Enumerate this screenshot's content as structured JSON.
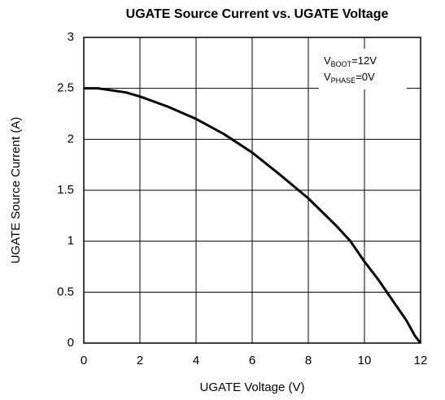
{
  "chart_data": {
    "type": "line",
    "title": "UGATE Source Current vs. UGATE Voltage",
    "x_label": "UGATE Voltage (V)",
    "y_label": "UGATE Source Current (A)",
    "annotations": [
      {
        "text": "V",
        "sub": "BOOT",
        "suffix": "=12V"
      },
      {
        "text": "V",
        "sub": "PHASE",
        "suffix": "=0V"
      }
    ],
    "x": [
      0,
      0.5,
      1,
      1.5,
      2,
      3,
      4,
      5,
      6,
      7,
      8,
      9,
      9.5,
      10,
      10.5,
      11,
      11.5,
      11.8,
      12
    ],
    "series": [
      {
        "name": "UGATE Source Current",
        "color": "#000000",
        "values": [
          2.5,
          2.5,
          2.48,
          2.46,
          2.42,
          2.32,
          2.2,
          2.05,
          1.87,
          1.65,
          1.42,
          1.15,
          1.0,
          0.8,
          0.62,
          0.42,
          0.22,
          0.07,
          0
        ]
      }
    ],
    "xlim": [
      0,
      12
    ],
    "xticks": [
      0,
      2,
      4,
      6,
      8,
      10,
      12
    ],
    "ylim": [
      0,
      3
    ],
    "yticks": [
      0,
      0.5,
      1,
      1.5,
      2,
      2.5,
      3
    ],
    "grid": true
  }
}
